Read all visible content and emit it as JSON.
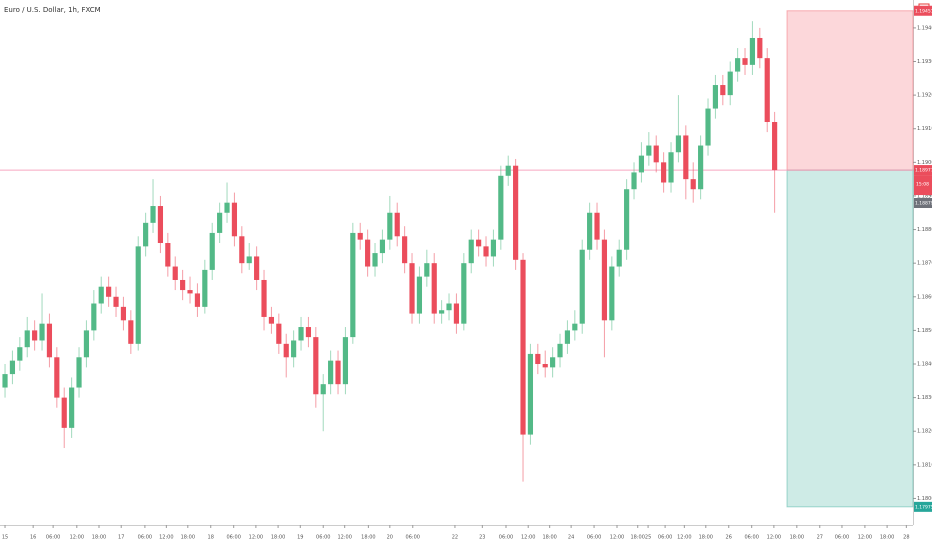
{
  "chart_data": {
    "type": "candlestick",
    "title": "Euro / U.S. Dollar, 1h, FXCM",
    "up_color": "#53b987",
    "down_color": "#eb4d5c",
    "open": [
      1.1833,
      1.1837,
      1.1841,
      1.1845,
      1.185,
      1.1847,
      1.1852,
      1.1842,
      1.183,
      1.1821,
      1.1833,
      1.1842,
      1.185,
      1.1858,
      1.1863,
      1.186,
      1.1857,
      1.1853,
      1.1846,
      1.1875,
      1.1882,
      1.1887,
      1.1876,
      1.1869,
      1.1865,
      1.1862,
      1.1861,
      1.1857,
      1.1868,
      1.1879,
      1.1885,
      1.1888,
      1.1878,
      1.187,
      1.1872,
      1.1865,
      1.1854,
      1.1852,
      1.1846,
      1.1842,
      1.1847,
      1.1851,
      1.1848,
      1.1831,
      1.1834,
      1.1841,
      1.1834,
      1.1848,
      1.1879,
      1.1877,
      1.1869,
      1.1873,
      1.1877,
      1.1885,
      1.1878,
      1.187,
      1.1855,
      1.1866,
      1.187,
      1.1855,
      1.1856,
      1.1858,
      1.1852,
      1.187,
      1.1877,
      1.1875,
      1.1872,
      1.1877,
      1.1896,
      1.1899,
      1.1871,
      1.1819,
      1.1843,
      1.184,
      1.1839,
      1.1842,
      1.1846,
      1.185,
      1.1852,
      1.1874,
      1.1885,
      1.1877,
      1.1853,
      1.1869,
      1.1874,
      1.1892,
      1.1897,
      1.1902,
      1.1905,
      1.19,
      1.1894,
      1.1903,
      1.1908,
      1.1895,
      1.1892,
      1.1905,
      1.1916,
      1.1923,
      1.192,
      1.1927,
      1.1931,
      1.1929,
      1.1937,
      1.1931,
      1.1912
    ],
    "high": [
      1.184,
      1.1844,
      1.1848,
      1.1854,
      1.1853,
      1.1861,
      1.1855,
      1.1845,
      1.1833,
      1.1836,
      1.1845,
      1.1853,
      1.1862,
      1.1866,
      1.1866,
      1.1863,
      1.186,
      1.1856,
      1.1878,
      1.1885,
      1.1895,
      1.189,
      1.1879,
      1.1872,
      1.1868,
      1.1866,
      1.1864,
      1.1871,
      1.1882,
      1.1888,
      1.1894,
      1.1891,
      1.1881,
      1.1876,
      1.1875,
      1.1868,
      1.1857,
      1.1855,
      1.1849,
      1.185,
      1.1854,
      1.1854,
      1.1851,
      1.1837,
      1.1844,
      1.1844,
      1.1851,
      1.1882,
      1.1882,
      1.188,
      1.1876,
      1.188,
      1.189,
      1.1888,
      1.1881,
      1.1873,
      1.1869,
      1.1874,
      1.1873,
      1.1859,
      1.1861,
      1.1861,
      1.1873,
      1.188,
      1.188,
      1.1878,
      1.188,
      1.1899,
      1.1902,
      1.1901,
      1.1873,
      1.1846,
      1.1846,
      1.1844,
      1.1845,
      1.1849,
      1.1853,
      1.1856,
      1.1877,
      1.1888,
      1.1888,
      1.188,
      1.1872,
      1.1877,
      1.1895,
      1.19,
      1.1906,
      1.1909,
      1.1908,
      1.1903,
      1.1906,
      1.192,
      1.1911,
      1.19,
      1.1908,
      1.1919,
      1.1926,
      1.1926,
      1.193,
      1.1934,
      1.1934,
      1.1942,
      1.194,
      1.1934,
      1.1915
    ],
    "low": [
      1.183,
      1.1834,
      1.1838,
      1.1842,
      1.1844,
      1.1844,
      1.1839,
      1.1827,
      1.1815,
      1.1818,
      1.183,
      1.1839,
      1.1847,
      1.1855,
      1.1857,
      1.1854,
      1.185,
      1.1843,
      1.1844,
      1.1872,
      1.1879,
      1.1873,
      1.1866,
      1.1862,
      1.1859,
      1.1858,
      1.1854,
      1.1855,
      1.1865,
      1.1876,
      1.1882,
      1.1875,
      1.1867,
      1.1868,
      1.1862,
      1.185,
      1.1849,
      1.1843,
      1.1836,
      1.1839,
      1.1844,
      1.1845,
      1.1827,
      1.182,
      1.1831,
      1.1831,
      1.1831,
      1.1846,
      1.1874,
      1.1866,
      1.1866,
      1.187,
      1.1874,
      1.1875,
      1.1867,
      1.1852,
      1.1852,
      1.1863,
      1.1852,
      1.1852,
      1.1853,
      1.1849,
      1.185,
      1.1867,
      1.1872,
      1.1869,
      1.1869,
      1.1874,
      1.1893,
      1.1868,
      1.1805,
      1.1816,
      1.1837,
      1.1836,
      1.1836,
      1.1839,
      1.1843,
      1.1847,
      1.1849,
      1.1871,
      1.1874,
      1.1842,
      1.185,
      1.1866,
      1.1871,
      1.1889,
      1.1894,
      1.1899,
      1.1897,
      1.1891,
      1.1891,
      1.19,
      1.1889,
      1.1888,
      1.1889,
      1.1902,
      1.1913,
      1.1917,
      1.1917,
      1.1924,
      1.1926,
      1.1926,
      1.1928,
      1.1909,
      1.1885
    ],
    "close": [
      1.1837,
      1.1841,
      1.1845,
      1.185,
      1.1847,
      1.1852,
      1.1842,
      1.183,
      1.1821,
      1.1833,
      1.1842,
      1.185,
      1.1858,
      1.1863,
      1.186,
      1.1857,
      1.1853,
      1.1846,
      1.1875,
      1.1882,
      1.1887,
      1.1876,
      1.1869,
      1.1865,
      1.1862,
      1.1861,
      1.1857,
      1.1868,
      1.1879,
      1.1885,
      1.1888,
      1.1878,
      1.187,
      1.1872,
      1.1865,
      1.1854,
      1.1852,
      1.1846,
      1.1842,
      1.1847,
      1.1851,
      1.1848,
      1.1831,
      1.1834,
      1.1841,
      1.1834,
      1.1848,
      1.1879,
      1.1877,
      1.1869,
      1.1873,
      1.1877,
      1.1885,
      1.1878,
      1.187,
      1.1855,
      1.1866,
      1.187,
      1.1855,
      1.1856,
      1.1858,
      1.1852,
      1.187,
      1.1877,
      1.1875,
      1.1872,
      1.1877,
      1.1896,
      1.1899,
      1.1871,
      1.1819,
      1.1843,
      1.184,
      1.1839,
      1.1842,
      1.1846,
      1.185,
      1.1852,
      1.1874,
      1.1885,
      1.1877,
      1.1853,
      1.1869,
      1.1874,
      1.1892,
      1.1897,
      1.1902,
      1.1905,
      1.19,
      1.1894,
      1.1903,
      1.1908,
      1.1895,
      1.1892,
      1.1905,
      1.1916,
      1.1923,
      1.192,
      1.1927,
      1.1931,
      1.1929,
      1.1937,
      1.1931,
      1.1912,
      1.18977
    ],
    "ylim": [
      1.17921,
      1.19483
    ],
    "yticks": [
      {
        "value": 1.18,
        "label": "1.18000"
      },
      {
        "value": 1.181,
        "label": "1.18100"
      },
      {
        "value": 1.182,
        "label": "1.18200"
      },
      {
        "value": 1.183,
        "label": "1.18300"
      },
      {
        "value": 1.184,
        "label": "1.18400"
      },
      {
        "value": 1.185,
        "label": "1.18500"
      },
      {
        "value": 1.186,
        "label": "1.18600"
      },
      {
        "value": 1.187,
        "label": "1.18700"
      },
      {
        "value": 1.188,
        "label": "1.18800"
      },
      {
        "value": 1.189,
        "label": "1.18900"
      },
      {
        "value": 1.19,
        "label": "1.19000"
      },
      {
        "value": 1.191,
        "label": "1.19100"
      },
      {
        "value": 1.192,
        "label": "1.19200"
      },
      {
        "value": 1.193,
        "label": "1.19300"
      },
      {
        "value": 1.194,
        "label": "1.19400"
      }
    ],
    "xlim": [
      -0.68,
      122.7
    ],
    "xticks": [
      {
        "value": 0,
        "label": "15"
      },
      {
        "value": 3.8,
        "label": "16"
      },
      {
        "value": 6.5,
        "label": "06:00"
      },
      {
        "value": 9.7,
        "label": "12:00"
      },
      {
        "value": 12.7,
        "label": "18:00"
      },
      {
        "value": 15.7,
        "label": "17"
      },
      {
        "value": 18.9,
        "label": "06:00"
      },
      {
        "value": 21.8,
        "label": "12:00"
      },
      {
        "value": 24.7,
        "label": "18:00"
      },
      {
        "value": 27.8,
        "label": "18"
      },
      {
        "value": 30.9,
        "label": "06:00"
      },
      {
        "value": 33.9,
        "label": "12:00"
      },
      {
        "value": 36.9,
        "label": "18:00"
      },
      {
        "value": 39.9,
        "label": "19"
      },
      {
        "value": 43,
        "label": "06:00"
      },
      {
        "value": 45.9,
        "label": "12:00"
      },
      {
        "value": 49.1,
        "label": "18:00"
      },
      {
        "value": 52,
        "label": "20"
      },
      {
        "value": 55.1,
        "label": "06:00"
      },
      {
        "value": 60.8,
        "label": "22"
      },
      {
        "value": 64.5,
        "label": "23"
      },
      {
        "value": 67.7,
        "label": "06:00"
      },
      {
        "value": 70.7,
        "label": "12:00"
      },
      {
        "value": 73.6,
        "label": "18:00"
      },
      {
        "value": 76.5,
        "label": "24"
      },
      {
        "value": 79.6,
        "label": "06:00"
      },
      {
        "value": 82.7,
        "label": "12:00"
      },
      {
        "value": 85.5,
        "label": "18:00"
      },
      {
        "value": 86.9,
        "label": "25"
      },
      {
        "value": 89.2,
        "label": "06:00"
      },
      {
        "value": 91.8,
        "label": "12:00"
      },
      {
        "value": 94.7,
        "label": "18:00"
      },
      {
        "value": 97.8,
        "label": "26"
      },
      {
        "value": 100.9,
        "label": "06:00"
      },
      {
        "value": 103.9,
        "label": "12:00"
      },
      {
        "value": 107,
        "label": "18:00"
      },
      {
        "value": 110.1,
        "label": "27"
      },
      {
        "value": 113.1,
        "label": "06:00"
      },
      {
        "value": 116.2,
        "label": "12:00"
      },
      {
        "value": 119.2,
        "label": "18:00"
      },
      {
        "value": 121.8,
        "label": "28"
      }
    ],
    "last_price": 1.18977,
    "countdown": "15:08",
    "marker_price": 1.18879,
    "position": {
      "stop": 1.19451,
      "entry": 1.18977,
      "target": 1.17975
    }
  }
}
